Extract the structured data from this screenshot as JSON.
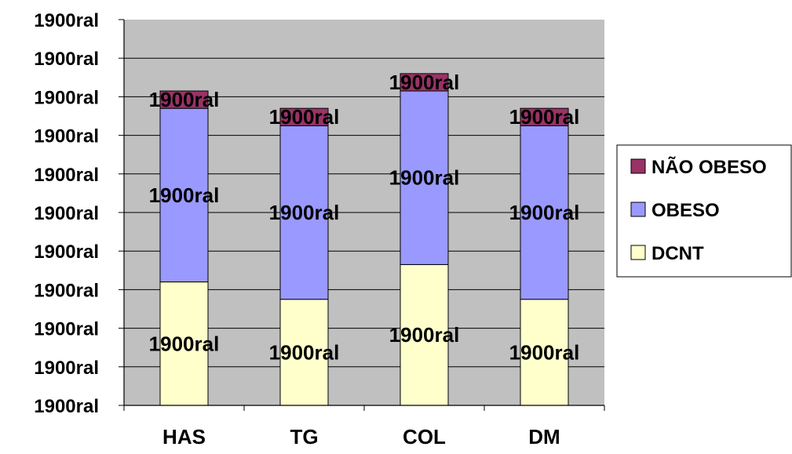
{
  "chart_data": {
    "type": "bar",
    "stacked": true,
    "categories": [
      "HAS",
      "TG",
      "COL",
      "DM"
    ],
    "series": [
      {
        "name": "DCNT",
        "color": "#FFFFCC",
        "values": [
          32,
          27.5,
          36.5,
          27.5
        ],
        "labels": [
          "1900ral",
          "1900ral",
          "1900ral",
          "1900ral"
        ]
      },
      {
        "name": "OBESO",
        "color": "#9999FF",
        "values": [
          45,
          45,
          45,
          45
        ],
        "labels": [
          "1900ral",
          "1900ral",
          "1900ral",
          "1900ral"
        ]
      },
      {
        "name": "NÃO OBESO",
        "color": "#993366",
        "values": [
          4.5,
          4.5,
          4.5,
          4.5
        ],
        "labels": [
          "1900ral",
          "1900ral",
          "1900ral",
          "1900ral"
        ]
      }
    ],
    "y_tick_labels": [
      "1900ral",
      "1900ral",
      "1900ral",
      "1900ral",
      "1900ral",
      "1900ral",
      "1900ral",
      "1900ral",
      "1900ral",
      "1900ral",
      "1900ral"
    ],
    "ylim": [
      0,
      100
    ],
    "grid": true,
    "plot_background": "#C0C0C0",
    "legend_position": "right"
  }
}
